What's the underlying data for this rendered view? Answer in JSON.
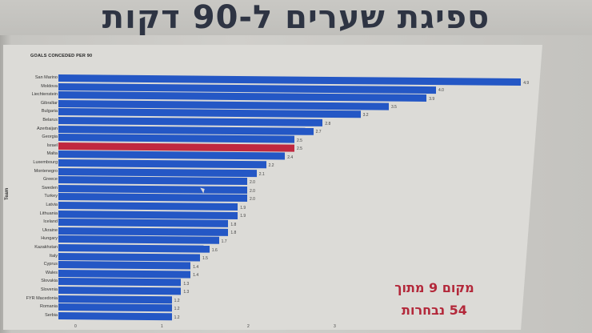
{
  "slide": {
    "title": "ספיגת שערים ל-90 דקות",
    "annotation_line1": "מקום 9 מתוך",
    "annotation_line2": "54 נבחרות"
  },
  "colors": {
    "bar": "#2457c5",
    "highlight": "#c0283f",
    "annotation": "#b3283a"
  },
  "chart_data": {
    "type": "bar",
    "orientation": "horizontal",
    "title": "GOALS CONCEDED PER 90",
    "xlabel": "",
    "ylabel": "Team",
    "xlim": [
      0,
      5
    ],
    "x_ticks": [
      "0",
      "1",
      "2",
      "3"
    ],
    "grid": false,
    "highlight": "Israel",
    "categories": [
      "San Marino",
      "Moldova",
      "Liechtenstein",
      "Gibraltar",
      "Bulgaria",
      "Belarus",
      "Azerbaijan",
      "Georgia",
      "Israel",
      "Malta",
      "Luxembourg",
      "Montenegro",
      "Greece",
      "Sweden",
      "Turkey",
      "Latvia",
      "Lithuania",
      "Iceland",
      "Ukraine",
      "Hungary",
      "Kazakhstan",
      "Italy",
      "Cyprus",
      "Wales",
      "Slovakia",
      "Slovenia",
      "FYR Macedonia",
      "Romania",
      "Serbia"
    ],
    "values": [
      4.9,
      4.0,
      3.9,
      3.5,
      3.2,
      2.8,
      2.7,
      2.5,
      2.5,
      2.4,
      2.2,
      2.1,
      2.0,
      2.0,
      2.0,
      1.9,
      1.9,
      1.8,
      1.8,
      1.7,
      1.6,
      1.5,
      1.4,
      1.4,
      1.3,
      1.3,
      1.2,
      1.2,
      1.2
    ],
    "value_labels": [
      "4.9",
      "4.0",
      "3.9",
      "3.5",
      "3.2",
      "2.8",
      "2.7",
      "2.5",
      "2.5",
      "2.4",
      "2.2",
      "2.1",
      "2.0",
      "2.0",
      "2.0",
      "1.9",
      "1.9",
      "1.8",
      "1.8",
      "1.7",
      "1.6",
      "1.5",
      "1.4",
      "1.4",
      "1.3",
      "1.3",
      "1.2",
      "1.2",
      "1.2"
    ],
    "annotation": "מקום 9 מתוך 54 נבחרות"
  }
}
